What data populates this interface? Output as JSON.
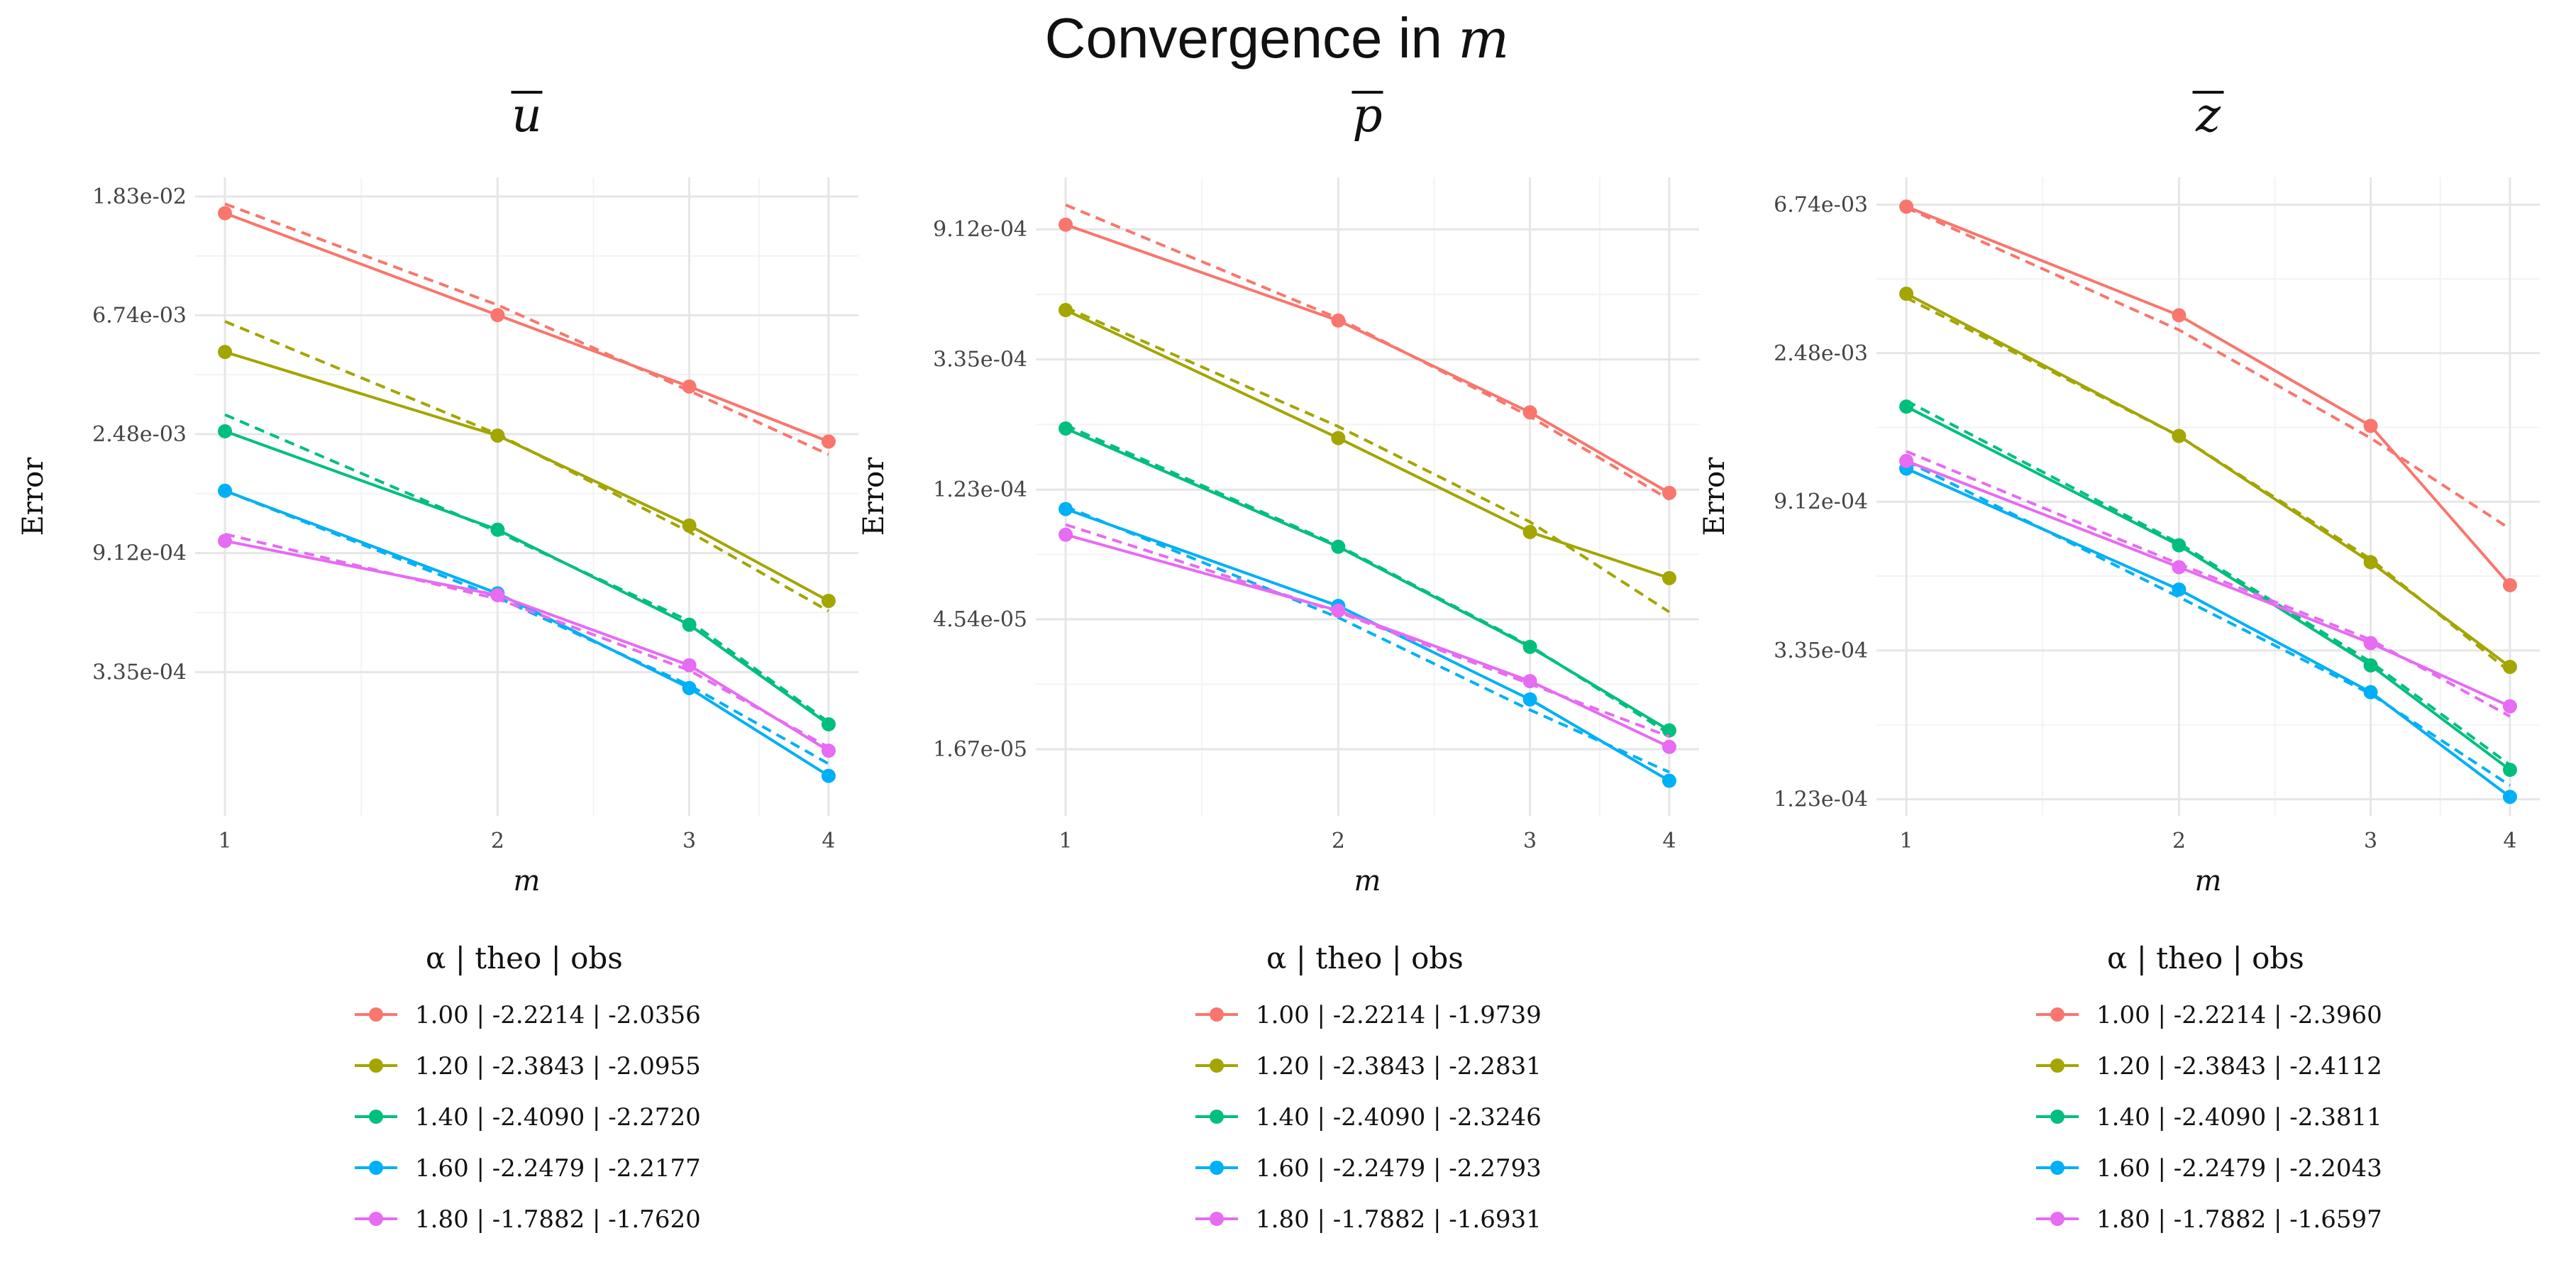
{
  "title": {
    "prefix": "Convergence in ",
    "var": "m"
  },
  "chart_data": [
    {
      "type": "line",
      "title": "u",
      "xlabel": "m",
      "ylabel": "Error",
      "x": [
        1,
        2,
        3,
        4
      ],
      "yscale": "log",
      "ylim": [
        0.0001,
        0.0215
      ],
      "yticks": [
        0.0183,
        0.00674,
        0.00248,
        0.000912,
        0.000335
      ],
      "ytick_labels": [
        "1.83e-02",
        "6.74e-03",
        "2.48e-03",
        "9.12e-04",
        "3.35e-04"
      ],
      "legend_title": "α  | theo  | obs",
      "series": [
        {
          "name": "1.00 | -2.2214 | -2.0356",
          "color": "#F8766D",
          "values": [
            0.0159,
            0.00675,
            0.0037,
            0.00233
          ],
          "theory": [
            0.0172,
            0.00735,
            0.00357,
            0.00209
          ]
        },
        {
          "name": "1.20 | -2.3843 | -2.0955",
          "color": "#A3A500",
          "values": [
            0.00495,
            0.00245,
            0.00115,
            0.00061
          ],
          "theory": [
            0.0064,
            0.00248,
            0.00109,
            0.00056
          ]
        },
        {
          "name": "1.40 | -2.4090 | -2.2720",
          "color": "#00BF7D",
          "values": [
            0.00254,
            0.00111,
            0.000499,
            0.000216
          ],
          "theory": [
            0.00292,
            0.00109,
            0.000515,
            0.00022
          ]
        },
        {
          "name": "1.60 | -2.2479 | -2.2177",
          "color": "#00B0F6",
          "values": [
            0.00154,
            0.00065,
            0.000293,
            0.00014
          ],
          "theory": [
            0.00154,
            0.000628,
            0.0003,
            0.000155
          ]
        },
        {
          "name": "1.80 | -1.7882 | -1.7620",
          "color": "#E76BF3",
          "values": [
            0.00101,
            0.00064,
            0.000355,
            0.000173
          ],
          "theory": [
            0.00107,
            0.00062,
            0.00034,
            0.000178
          ]
        }
      ]
    },
    {
      "type": "line",
      "title": "p",
      "xlabel": "m",
      "ylabel": "Error",
      "x": [
        1,
        2,
        3,
        4
      ],
      "yscale": "log",
      "ylim": [
        1e-05,
        0.00136
      ],
      "yticks": [
        0.000912,
        0.000335,
        0.000123,
        4.54e-05,
        1.67e-05
      ],
      "ytick_labels": [
        "9.12e-04",
        "3.35e-04",
        "1.23e-04",
        "4.54e-05",
        "1.67e-05"
      ],
      "legend_title": "α  | theo  | obs",
      "series": [
        {
          "name": "1.00 | -2.2214 | -1.9739",
          "color": "#F8766D",
          "values": [
            0.000945,
            0.000452,
            0.000223,
            0.00012
          ],
          "theory": [
            0.0011,
            0.00046,
            0.000216,
            0.000114
          ]
        },
        {
          "name": "1.20 | -2.3843 | -2.2831",
          "color": "#A3A500",
          "values": [
            0.00049,
            0.000183,
            8.88e-05,
            6.23e-05
          ],
          "theory": [
            0.0005,
            0.0002,
            9.6e-05,
            4.8e-05
          ]
        },
        {
          "name": "1.40 | -2.4090 | -2.3246",
          "color": "#00BF7D",
          "values": [
            0.000197,
            7.93e-05,
            3.67e-05,
            1.93e-05
          ],
          "theory": [
            0.000202,
            8e-05,
            3.7e-05,
            1.88e-05
          ]
        },
        {
          "name": "1.60 | -2.2479 | -2.2793",
          "color": "#00B0F6",
          "values": [
            0.000106,
            5.03e-05,
            2.45e-05,
            1.31e-05
          ],
          "theory": [
            0.000108,
            4.6e-05,
            2.26e-05,
            1.4e-05
          ]
        },
        {
          "name": "1.80 | -1.7882 | -1.6931",
          "color": "#E76BF3",
          "values": [
            8.7e-05,
            4.85e-05,
            2.82e-05,
            1.7e-05
          ],
          "theory": [
            9.4e-05,
            4.8e-05,
            2.76e-05,
            1.84e-05
          ]
        }
      ]
    },
    {
      "type": "line",
      "title": "z",
      "xlabel": "m",
      "ylabel": "Error",
      "x": [
        1,
        2,
        3,
        4
      ],
      "yscale": "log",
      "ylim": [
        0.00011,
        0.0081
      ],
      "yticks": [
        0.00674,
        0.00248,
        0.000912,
        0.000335,
        0.000123
      ],
      "ytick_labels": [
        "6.74e-03",
        "2.48e-03",
        "9.12e-04",
        "3.35e-04",
        "1.23e-04"
      ],
      "legend_title": "α  | theo  | obs",
      "series": [
        {
          "name": "1.00 | -2.2214 | -2.3960",
          "color": "#F8766D",
          "values": [
            0.00665,
            0.0032,
            0.00152,
            0.00052
          ],
          "theory": [
            0.0066,
            0.0029,
            0.0014,
            0.00076
          ]
        },
        {
          "name": "1.20 | -2.3843 | -2.4112",
          "color": "#A3A500",
          "values": [
            0.0037,
            0.00142,
            0.000607,
            0.0003
          ],
          "theory": [
            0.0036,
            0.00142,
            0.00062,
            0.00029
          ]
        },
        {
          "name": "1.40 | -2.4090 | -2.3811",
          "color": "#00BF7D",
          "values": [
            0.00173,
            0.00068,
            0.000303,
            0.00015
          ],
          "theory": [
            0.0018,
            0.00069,
            0.00031,
            0.000155
          ]
        },
        {
          "name": "1.60 | -2.2479 | -2.2043",
          "color": "#00B0F6",
          "values": [
            0.00114,
            0.000505,
            0.000253,
            0.000125
          ],
          "theory": [
            0.0012,
            0.00048,
            0.00025,
            0.000135
          ]
        },
        {
          "name": "1.80 | -1.7882 | -1.6597",
          "color": "#E76BF3",
          "values": [
            0.0012,
            0.000587,
            0.000352,
            0.00023
          ],
          "theory": [
            0.00128,
            0.0006,
            0.00036,
            0.000215
          ]
        }
      ]
    }
  ]
}
